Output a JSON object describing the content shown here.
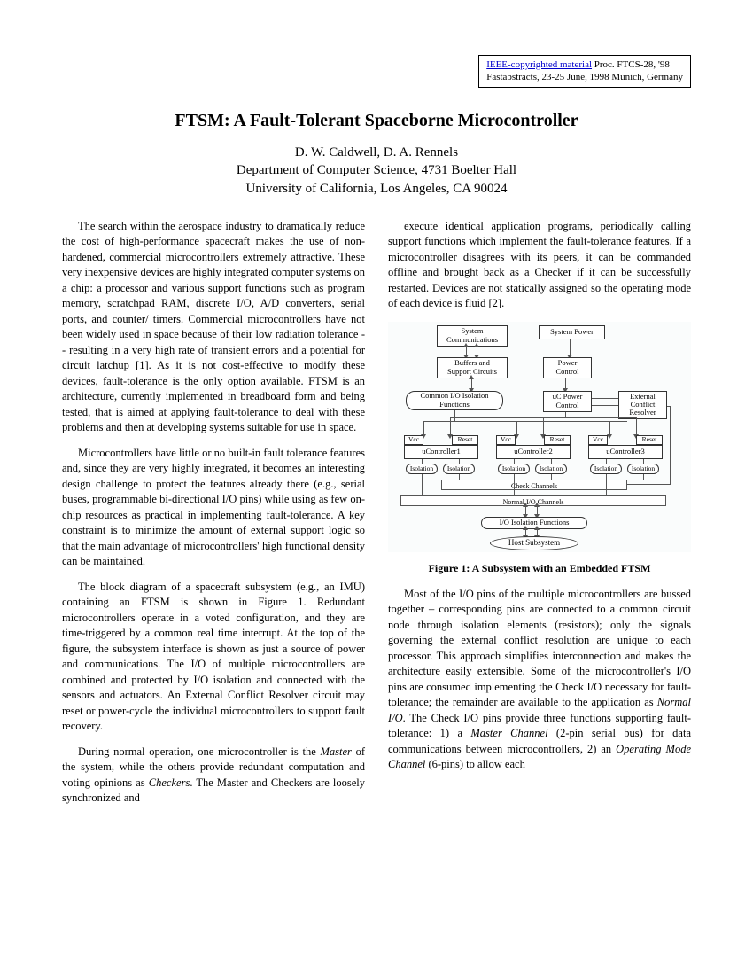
{
  "copyright": {
    "link_text": "IEEE-copyrighted material",
    "proc": " Proc. FTCS-28, '98",
    "line2": "Fastabstracts, 23-25 June, 1998 Munich, Germany"
  },
  "title": "FTSM: A Fault-Tolerant Spaceborne Microcontroller",
  "authors": {
    "line1": "D. W. Caldwell, D. A. Rennels",
    "line2": "Department of Computer Science, 4731 Boelter Hall",
    "line3": "University of California, Los Angeles, CA  90024"
  },
  "col1": {
    "p1": "The search within the aerospace industry to dramatically reduce the cost of high-performance spacecraft makes the use of non-hardened, commercial microcontrollers extremely attractive. These very inexpensive devices are highly integrated computer systems on a chip: a processor and various support functions such as program memory, scratchpad RAM, discrete I/O, A/D converters, serial ports, and counter/ timers. Commercial microcontrollers have not been widely used in space because of their low radiation tolerance -- resulting in a very high rate of transient errors and a potential for circuit latchup [1]. As it is not cost-effective to modify these devices, fault-tolerance is the only option available. FTSM is an architecture, currently implemented in breadboard form and being tested, that is aimed at applying fault-tolerance to deal with these problems and then at developing systems suitable for use in space.",
    "p2": "Microcontrollers have little or no built-in fault tolerance features and, since they are very highly integrated, it becomes an interesting design challenge to protect the features already there (e.g., serial buses, programmable bi-directional I/O pins) while using as few on-chip resources as practical in implementing fault-tolerance. A key constraint is to minimize the amount of external support logic so that the main advantage of microcontrollers' high functional density can be maintained.",
    "p3": "The block diagram of a spacecraft subsystem (e.g., an IMU) containing an FTSM is shown in Figure 1. Redundant microcontrollers operate in a voted configuration, and they are time-triggered by a common real time interrupt. At the top of the figure, the subsystem interface is shown as just a source of power and communications. The I/O of multiple microcontrollers are combined and protected by I/O isolation and connected with the sensors and actuators. An External Conflict Resolver circuit may reset or power-cycle the individual microcontrollers to support fault recovery.",
    "p4a": "During normal operation, one microcontroller is the ",
    "p4b": "Master",
    "p4c": " of the system, while the others provide redundant computation and voting opinions as ",
    "p4d": "Checkers",
    "p4e": ". The Master and Checkers are loosely synchronized and"
  },
  "col2": {
    "p1": "execute identical application programs, periodically calling support functions which implement the fault-tolerance features. If a microcontroller disagrees with its peers, it can be commanded offline and brought back as a Checker if it can be successfully restarted. Devices are not statically assigned so the operating mode of each device is fluid [2].",
    "caption": "Figure 1: A Subsystem with an Embedded FTSM",
    "p2a": "Most of the I/O pins of the multiple microcontrollers are bussed together – corresponding pins are connected to a common circuit node through isolation elements (resistors); only the signals governing the external conflict resolution are unique to each processor. This approach simplifies interconnection and makes the architecture easily extensible. Some of the microcontroller's I/O pins are consumed implementing the Check I/O necessary for fault-tolerance; the remainder are available to the application as ",
    "p2b": "Normal I/O",
    "p2c": ". The Check I/O pins provide three functions supporting fault-tolerance: 1) a ",
    "p2d": "Master Channel",
    "p2e": " (2-pin serial bus) for data communications between microcontrollers, 2) an ",
    "p2f": "Operating Mode Channel",
    "p2g": " (6-pins) to allow each"
  },
  "diagram": {
    "boxes": {
      "syscom": "System\nCommunications",
      "syspower": "System Power",
      "buffers": "Buffers and\nSupport Circuits",
      "powerctrl": "Power\nControl",
      "commonio": "Common I/O Isolation\nFunctions",
      "ucpower": "uC Power\nControl",
      "extconf": "External\nConflict\nResolver",
      "uc1": "uController1",
      "uc2": "uController2",
      "uc3": "uController3",
      "vcc": "Vcc",
      "reset": "Reset",
      "isolation": "Isolation",
      "checkchan": "Check Channels",
      "normalio": "Normal I/O Channels",
      "ioiso": "I/O Isolation Functions",
      "host": "Host Subsystem"
    }
  }
}
